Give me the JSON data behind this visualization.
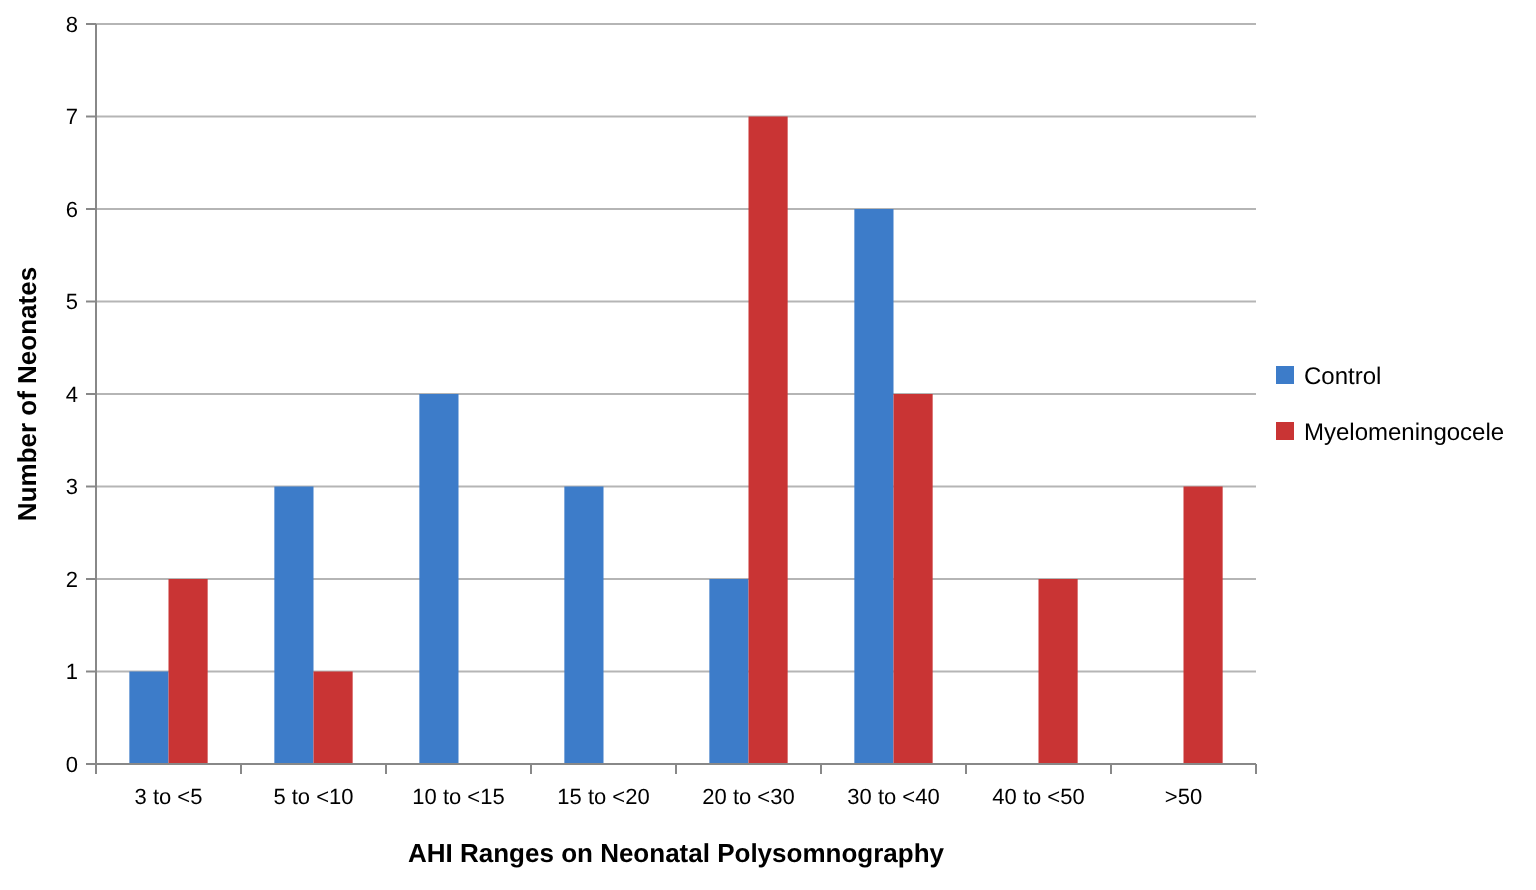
{
  "chart_data": {
    "type": "bar",
    "xlabel": "AHI Ranges on Neonatal Polysomnography",
    "ylabel": "Number of Neonates",
    "categories": [
      "3 to <5",
      "5 to <10",
      "10 to <15",
      "15 to <20",
      "20 to <30",
      "30 to <40",
      "40 to <50",
      ">50"
    ],
    "series": [
      {
        "name": "Control",
        "color": "#3d7cc9",
        "values": [
          1,
          3,
          4,
          3,
          2,
          6,
          0,
          0
        ]
      },
      {
        "name": "Myelomeningocele",
        "color": "#c93434",
        "values": [
          2,
          1,
          0,
          0,
          7,
          4,
          2,
          3
        ]
      }
    ],
    "ylim": [
      0,
      8
    ],
    "yticks": [
      0,
      1,
      2,
      3,
      4,
      5,
      6,
      7,
      8
    ],
    "grid": "y",
    "legend": "right"
  }
}
